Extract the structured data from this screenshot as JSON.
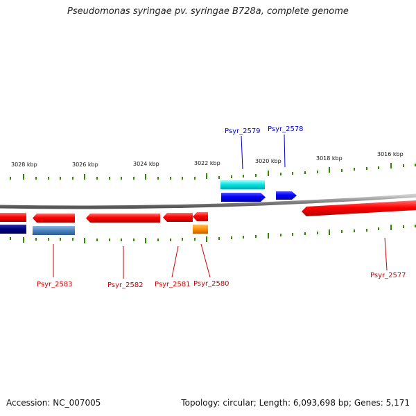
{
  "title": "Pseudomonas syringae pv. syringae B728a, complete genome",
  "footer": {
    "accession": "Accession: NC_007005",
    "topology": "Topology: circular; Length: 6,093,698 bp; Genes: 5,171"
  },
  "colors": {
    "strand_forward": "#ff0000",
    "strand_reverse": "#ff0000",
    "backbone": "#888888",
    "tick": "#2e8b00",
    "label_red": "#cc0000",
    "label_blue": "#0000cc"
  },
  "scale": {
    "tick_labels": [
      "3028 kbp",
      "3026 kbp",
      "3024 kbp",
      "3022 kbp",
      "3020 kbp",
      "3018 kbp",
      "3016 kbp"
    ]
  },
  "genes": [
    {
      "label": "Psyr_2583",
      "color": "#ff0000",
      "lane": "rev1",
      "direction": "left"
    },
    {
      "label": "Psyr_2582",
      "color": "#ff0000",
      "lane": "rev1",
      "direction": "left"
    },
    {
      "label": "Psyr_2581",
      "color": "#ff0000",
      "lane": "rev1",
      "direction": "left"
    },
    {
      "label": "Psyr_2580",
      "color": "#ff0000",
      "lane": "rev1",
      "direction": "left"
    },
    {
      "label": "Psyr_2579",
      "color": "#0000ff",
      "lane": "fwd1",
      "direction": "right"
    },
    {
      "label": "Psyr_2578",
      "color": "#0000ff",
      "lane": "fwd1",
      "direction": "right"
    },
    {
      "label": "Psyr_2577",
      "color": "#ff0000",
      "lane": "rev1",
      "direction": "left"
    }
  ]
}
